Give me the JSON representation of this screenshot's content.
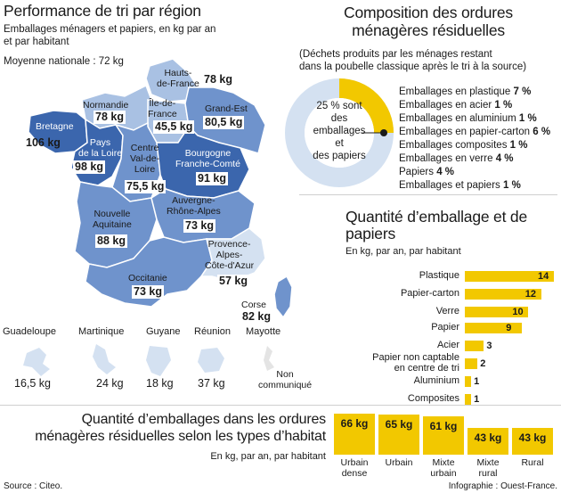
{
  "map": {
    "title": "Performance de tri par région",
    "subtitle_line1": "Emballages ménagers et papiers, en kg par an",
    "subtitle_line2": "et par habitant",
    "national": "Moyenne nationale : 72 kg",
    "regions": [
      {
        "name": "Hauts-\nde-France",
        "value": "78 kg"
      },
      {
        "name": "Normandie",
        "value": "78 kg"
      },
      {
        "name": "Île-de-\nFrance",
        "value": "45,5 kg"
      },
      {
        "name": "Grand-Est",
        "value": "80,5 kg"
      },
      {
        "name": "Bretagne",
        "value": "106 kg"
      },
      {
        "name": "Pays\nde la Loire",
        "value": "98 kg"
      },
      {
        "name": "Centre\nVal-de-\nLoire",
        "value": "75,5 kg"
      },
      {
        "name": "Bourgogne\nFranche-Comté",
        "value": "91 kg"
      },
      {
        "name": "Auvergne-\nRhône-Alpes",
        "value": "73 kg"
      },
      {
        "name": "Nouvelle\nAquitaine",
        "value": "88 kg"
      },
      {
        "name": "Provence-\nAlpes-\nCôte-d'Azur",
        "value": "57 kg"
      },
      {
        "name": "Occitanie",
        "value": "73 kg"
      },
      {
        "name": "Corse",
        "value": "82 kg"
      }
    ],
    "overseas": [
      {
        "name": "Guadeloupe",
        "value": "16,5 kg"
      },
      {
        "name": "Martinique",
        "value": "24 kg"
      },
      {
        "name": "Guyane",
        "value": "18 kg"
      },
      {
        "name": "Réunion",
        "value": "37 kg"
      },
      {
        "name": "Mayotte",
        "value": "Non\ncommuniqué"
      }
    ]
  },
  "composition": {
    "title_line1": "Composition des ordures",
    "title_line2": "ménagères résiduelles",
    "note_line1": "(Déchets produits par les ménages restant",
    "note_line2": "dans la poubelle classique après le tri à la source)",
    "donut_text": "25 % sont\ndes\nemballages\net\ndes papiers",
    "donut_percent": 25,
    "items": [
      {
        "label": "Emballages en plastique",
        "pct": "7 %"
      },
      {
        "label": "Emballages en acier",
        "pct": "1 %"
      },
      {
        "label": "Emballages en aluminium",
        "pct": "1 %"
      },
      {
        "label": "Emballages en papier-carton",
        "pct": "6 %"
      },
      {
        "label": "Emballages composites",
        "pct": "1 %"
      },
      {
        "label": "Emballages en verre",
        "pct": "4 %"
      },
      {
        "label": "Papiers",
        "pct": "4 %"
      },
      {
        "label": "Emballages et papiers",
        "pct": "1 %"
      }
    ]
  },
  "chart_data": [
    {
      "type": "bar",
      "orientation": "horizontal",
      "title": "Quantité d’emballage et de papiers",
      "subtitle": "En kg, par an, par habitant",
      "categories": [
        "Plastique",
        "Papier-carton",
        "Verre",
        "Papier",
        "Acier",
        "Papier non captable\nen centre de tri",
        "Aluminium",
        "Composites"
      ],
      "values": [
        14,
        12,
        10,
        9,
        3,
        2,
        1,
        1
      ]
    },
    {
      "type": "bar",
      "orientation": "vertical",
      "title_line1": "Quantité d’emballages dans les ordures",
      "title_line2": "ménagères résiduelles selon les types d’habitat",
      "subtitle": "En kg, par an, par habitant",
      "categories": [
        "Urbain\ndense",
        "Urbain",
        "Mixte\nurbain",
        "Mixte\nrural",
        "Rural"
      ],
      "values": [
        66,
        65,
        61,
        43,
        43
      ],
      "labels": [
        "66 kg",
        "65 kg",
        "61 kg",
        "43 kg",
        "43 kg"
      ]
    }
  ],
  "footer": {
    "source": "Source : Citeo.",
    "credit": "Infographie : Ouest-France."
  },
  "colors": {
    "accent": "#f2c800",
    "map_dark": "#3b66ad",
    "map_mid": "#6f93cc",
    "map_light": "#a9c1e3",
    "donut_light": "#d4e1f1"
  }
}
